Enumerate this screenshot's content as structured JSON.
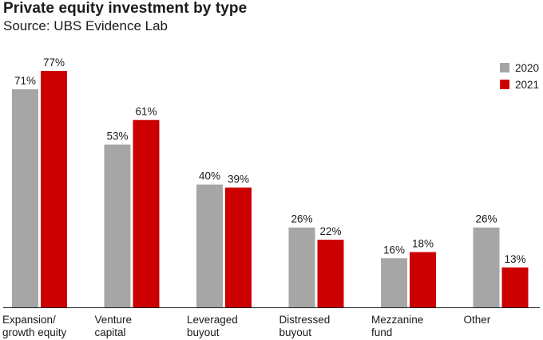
{
  "chart_data": {
    "type": "bar",
    "title": "Private equity investment by type",
    "subtitle": "Source: UBS Evidence Lab",
    "categories": [
      [
        "Expansion/",
        "growth equity"
      ],
      [
        "Venture",
        "capital"
      ],
      [
        "Leveraged",
        "buyout"
      ],
      [
        "Distressed",
        "buyout"
      ],
      [
        "Mezzanine",
        "fund"
      ],
      [
        "Other"
      ]
    ],
    "series": [
      {
        "name": "2020",
        "color": "#a6a6a6",
        "values": [
          71,
          53,
          40,
          26,
          16,
          26
        ],
        "labels": [
          "71%",
          "53%",
          "40%",
          "26%",
          "16%",
          "26%"
        ]
      },
      {
        "name": "2021",
        "color": "#cc0000",
        "values": [
          77,
          61,
          39,
          22,
          18,
          13
        ],
        "labels": [
          "77%",
          "61%",
          "39%",
          "22%",
          "18%",
          "13%"
        ]
      }
    ],
    "ylim": [
      0,
      77
    ],
    "legend_position": "top-right",
    "grid": false
  }
}
